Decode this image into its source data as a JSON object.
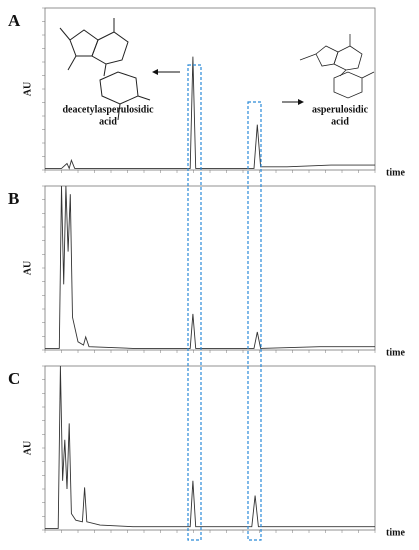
{
  "chart_data": [
    {
      "type": "line",
      "panel": "A",
      "y_label": "AU",
      "x_label": "time",
      "annotations": [
        "deacetylasperulosidic",
        "acid",
        "asperulosidic",
        "acid"
      ],
      "xlim": [
        0,
        30
      ],
      "ylim": [
        0,
        100
      ],
      "color": "#333333",
      "x": [
        0,
        1.5,
        2.0,
        2.2,
        2.4,
        2.7,
        3.0,
        5,
        10,
        13.2,
        13.45,
        13.7,
        16,
        19.0,
        19.3,
        19.6,
        22,
        26,
        30
      ],
      "values": [
        1,
        1,
        4,
        1,
        6,
        1,
        1,
        1,
        1,
        1,
        70,
        1,
        1,
        1,
        28,
        2,
        2,
        3,
        3
      ]
    },
    {
      "type": "line",
      "panel": "B",
      "y_label": "AU",
      "x_label": "time",
      "xlim": [
        0,
        30
      ],
      "ylim": [
        0,
        100
      ],
      "color": "#333333",
      "x": [
        0,
        1.3,
        1.5,
        1.7,
        1.9,
        2.1,
        2.3,
        2.5,
        3.0,
        3.5,
        3.7,
        4,
        8,
        13.2,
        13.45,
        13.7,
        19,
        19.3,
        19.6,
        25,
        30
      ],
      "values": [
        1,
        1,
        100,
        40,
        100,
        60,
        95,
        20,
        5,
        3,
        8,
        2,
        1,
        1,
        22,
        1,
        1,
        11,
        1,
        2,
        2
      ]
    },
    {
      "type": "line",
      "panel": "C",
      "y_label": "AU",
      "x_label": "time",
      "xlim": [
        0,
        30
      ],
      "ylim": [
        0,
        100
      ],
      "color": "#333333",
      "x": [
        0,
        1.2,
        1.4,
        1.6,
        1.8,
        2.0,
        2.2,
        2.4,
        2.8,
        3.4,
        3.6,
        3.8,
        5,
        8,
        13.2,
        13.45,
        13.7,
        18.8,
        19.1,
        19.4,
        25,
        30
      ],
      "values": [
        1,
        1,
        100,
        30,
        55,
        25,
        65,
        10,
        6,
        5,
        26,
        5,
        3,
        2,
        2,
        30,
        2,
        2,
        21,
        2,
        2,
        2
      ]
    }
  ]
}
